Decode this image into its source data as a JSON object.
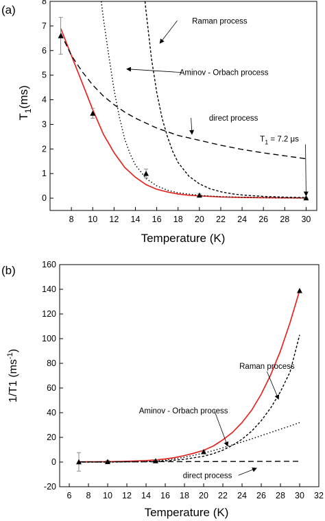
{
  "chart_data": [
    {
      "panel_label": "(a)",
      "type": "line",
      "xlabel": "Temperature (K)",
      "ylabel": "T",
      "ylabel_sub": "1",
      "ylabel_unit": "(ms)",
      "xlim": [
        6,
        31
      ],
      "ylim": [
        -0.5,
        8
      ],
      "xticks": [
        8,
        10,
        12,
        14,
        16,
        18,
        20,
        22,
        24,
        26,
        28,
        30
      ],
      "yticks": [
        0,
        1,
        2,
        3,
        4,
        5,
        6,
        7,
        8
      ],
      "points": [
        {
          "x": 7,
          "y": 6.6,
          "err": 0.75
        },
        {
          "x": 10,
          "y": 3.45,
          "err": 0.2
        },
        {
          "x": 15,
          "y": 1.0,
          "err": 0.18
        },
        {
          "x": 20,
          "y": 0.12,
          "err": 0.05
        },
        {
          "x": 30,
          "y": 0.0072,
          "err": 0.02
        }
      ],
      "series": [
        {
          "style": "solid-red",
          "x": [
            7,
            8,
            9,
            10,
            11,
            12,
            13,
            14,
            15,
            16,
            17,
            18,
            19,
            20,
            22,
            24,
            26,
            28,
            30
          ],
          "y": [
            6.9,
            5.8,
            4.7,
            3.6,
            2.6,
            1.85,
            1.25,
            0.85,
            0.55,
            0.36,
            0.25,
            0.17,
            0.12,
            0.09,
            0.05,
            0.03,
            0.018,
            0.011,
            0.007
          ]
        },
        {
          "style": "dotted",
          "x": [
            10.8,
            11,
            11.5,
            12,
            12.5,
            13,
            13.5,
            14,
            15,
            16,
            17,
            18,
            20,
            22,
            24,
            26,
            28,
            30
          ],
          "y": [
            8.0,
            7.3,
            5.8,
            4.4,
            3.3,
            2.4,
            1.8,
            1.35,
            0.8,
            0.5,
            0.32,
            0.22,
            0.11,
            0.06,
            0.035,
            0.02,
            0.012,
            0.008
          ]
        },
        {
          "style": "short-dash",
          "x": [
            14.9,
            15,
            15.5,
            16,
            16.5,
            17,
            17.5,
            18,
            19,
            20,
            21,
            22,
            23,
            24,
            26,
            28,
            30
          ],
          "y": [
            8.0,
            7.6,
            5.7,
            4.3,
            3.25,
            2.5,
            1.9,
            1.45,
            0.9,
            0.58,
            0.38,
            0.26,
            0.18,
            0.13,
            0.07,
            0.04,
            0.025
          ]
        },
        {
          "style": "long-dash",
          "x": [
            7,
            8,
            9,
            10,
            11,
            12,
            13,
            14,
            15,
            16,
            17,
            18,
            19,
            20,
            22,
            24,
            26,
            28,
            30
          ],
          "y": [
            6.7,
            5.8,
            5.15,
            4.6,
            4.15,
            3.8,
            3.5,
            3.25,
            3.05,
            2.85,
            2.7,
            2.55,
            2.45,
            2.35,
            2.15,
            1.98,
            1.84,
            1.72,
            1.6
          ]
        }
      ],
      "annotations": [
        {
          "text": "Raman process",
          "x": 21.9,
          "y": 7.1,
          "arrow_to": [
            16.3,
            6.3
          ]
        },
        {
          "text": "Aminov - Orbach process",
          "x": 22.3,
          "y": 5.0,
          "arrow_to": [
            13.2,
            5.25
          ]
        },
        {
          "text": "direct process",
          "x": 23.2,
          "y": 3.15,
          "arrow_to": [
            19.3,
            2.6
          ]
        },
        {
          "text": "T",
          "sub": "1",
          "rest": " = 7.2 μs",
          "x": 27.5,
          "y": 2.3,
          "arrow_to": [
            30,
            0.1
          ]
        }
      ]
    },
    {
      "panel_label": "(b)",
      "type": "line",
      "xlabel": "Temperature (K)",
      "ylabel": "1/T1 (ms",
      "ylabel_sup": "-1",
      "ylabel_close": ")",
      "xlim": [
        5,
        32
      ],
      "ylim": [
        -20,
        160
      ],
      "xticks": [
        6,
        8,
        10,
        12,
        14,
        16,
        18,
        20,
        22,
        24,
        26,
        28,
        30,
        32
      ],
      "yticks": [
        -20,
        0,
        20,
        40,
        60,
        80,
        100,
        120,
        140,
        160
      ],
      "points": [
        {
          "x": 7,
          "y": 0.15,
          "err": 7.5
        },
        {
          "x": 10,
          "y": 0.29,
          "err": 1.0
        },
        {
          "x": 15,
          "y": 1.0,
          "err": 0.8
        },
        {
          "x": 20,
          "y": 8.3,
          "err": 0.8
        },
        {
          "x": 30,
          "y": 138.9,
          "err": 0
        }
      ],
      "series": [
        {
          "style": "solid-red",
          "x": [
            7,
            10,
            12,
            14,
            15,
            16,
            17,
            18,
            19,
            20,
            21,
            22,
            23,
            24,
            25,
            26,
            27,
            28,
            29,
            30
          ],
          "y": [
            0.15,
            0.3,
            0.6,
            1.2,
            1.7,
            2.5,
            3.6,
            5.2,
            7.2,
            9.5,
            13,
            18,
            24,
            32,
            42,
            55,
            71,
            90,
            113,
            139
          ]
        },
        {
          "style": "short-dash",
          "x": [
            7,
            10,
            14,
            16,
            18,
            20,
            21,
            22,
            23,
            24,
            25,
            26,
            27,
            28,
            29,
            30
          ],
          "y": [
            0,
            0.02,
            0.3,
            0.9,
            2.2,
            4.7,
            6.8,
            9.6,
            13.5,
            18.5,
            25,
            33.5,
            44,
            57,
            73,
            103
          ]
        },
        {
          "style": "dotted",
          "x": [
            7,
            10,
            14,
            15,
            16,
            17,
            18,
            19,
            20,
            21,
            22,
            23,
            24,
            25,
            26,
            27,
            28,
            29,
            30
          ],
          "y": [
            0,
            0.02,
            0.4,
            0.8,
            1.5,
            2.6,
            3.9,
            5.5,
            7.3,
            9.3,
            11.5,
            13.9,
            16.3,
            18.8,
            21.4,
            24,
            26.6,
            29.2,
            32
          ]
        },
        {
          "style": "long-dash",
          "x": [
            7,
            10,
            15,
            20,
            25,
            30
          ],
          "y": [
            0.15,
            0.2,
            0.3,
            0.4,
            0.5,
            0.6
          ]
        }
      ],
      "annotations": [
        {
          "text": "Raman process",
          "x": 26.6,
          "y": 75.5,
          "arrow_to": [
            27.8,
            51
          ]
        },
        {
          "text": "Aminov - Orbach process",
          "x": 17.9,
          "y": 39.5,
          "arrow_to": [
            22.5,
            13
          ]
        },
        {
          "text": "direct process",
          "x": 20.4,
          "y": -13.0,
          "arrow_to": [
            25.5,
            -5
          ]
        }
      ]
    }
  ]
}
